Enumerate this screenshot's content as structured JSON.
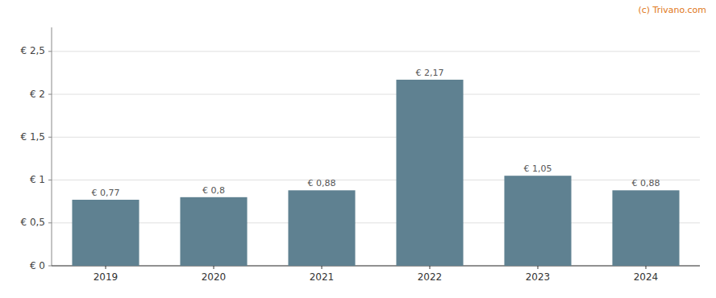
{
  "chart_data": {
    "type": "bar",
    "annotation": "(c) Trivano.com",
    "categories": [
      "2019",
      "2020",
      "2021",
      "2022",
      "2023",
      "2024"
    ],
    "values": [
      0.77,
      0.8,
      0.88,
      2.17,
      1.05,
      0.88
    ],
    "value_labels": [
      "€ 0,77",
      "€ 0,8",
      "€ 0,88",
      "€ 2,17",
      "€ 1,05",
      "€ 0,88"
    ],
    "data_labels": true,
    "color": "#5f8191",
    "ylim": [
      0,
      2.78
    ],
    "yticks": [
      {
        "value": 0,
        "label": "€ 0"
      },
      {
        "value": 0.5,
        "label": "€ 0,5"
      },
      {
        "value": 1.0,
        "label": "€ 1"
      },
      {
        "value": 1.5,
        "label": "€ 1,5"
      },
      {
        "value": 2.0,
        "label": "€ 2"
      },
      {
        "value": 2.5,
        "label": "€ 2,5"
      }
    ],
    "grid": true
  }
}
